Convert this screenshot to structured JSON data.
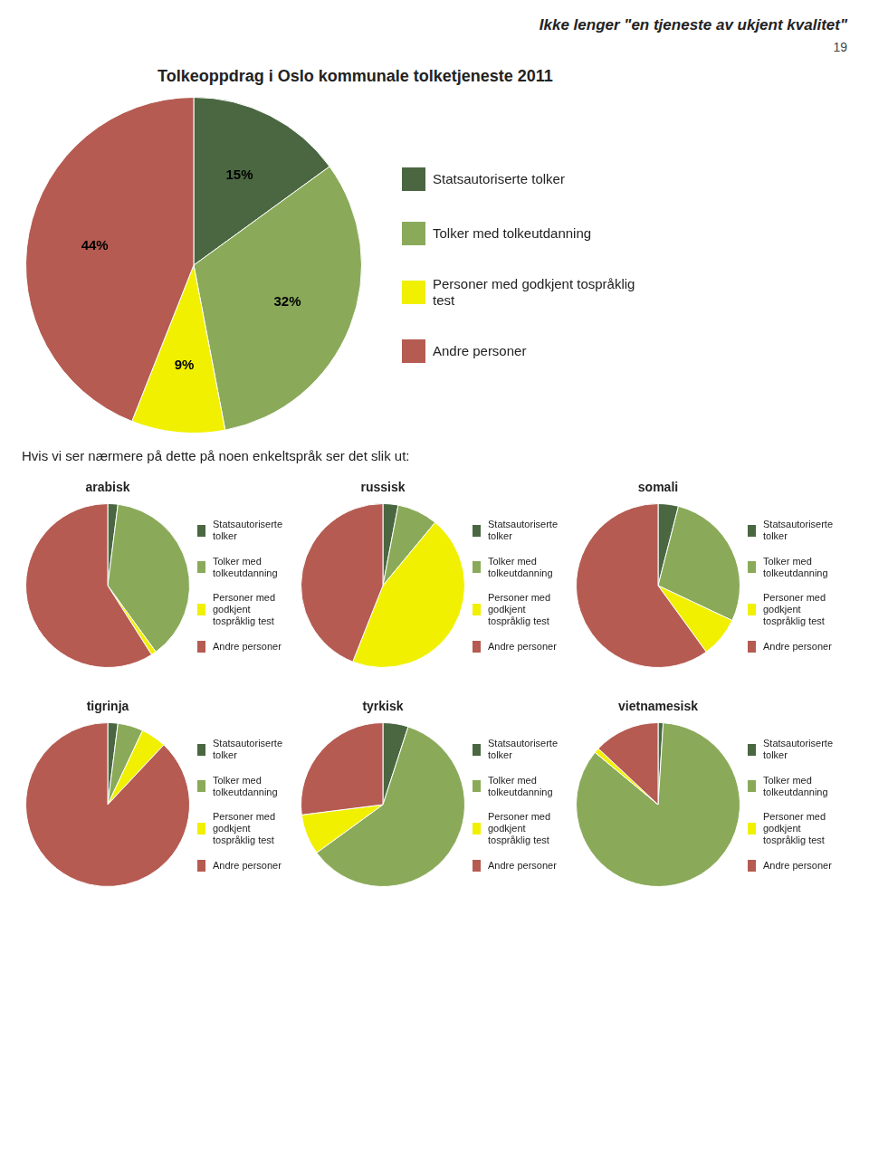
{
  "chart_data": [
    {
      "type": "pie",
      "title": "Tolkeoppdrag i Oslo kommunale tolketjeneste 2011",
      "categories": [
        "Statsautoriserte tolker",
        "Tolker med tolkeutdanning",
        "Personer med godkjent tospråklig\ntest",
        "Andre personer"
      ],
      "values": [
        15,
        32,
        9,
        44
      ],
      "value_labels": [
        "15%",
        "32%",
        "9%",
        "44%"
      ],
      "data_labels": true,
      "colors": [
        "#4a6741",
        "#8aaa5a",
        "#f0f000",
        "#b55b52"
      ],
      "legend": "right",
      "annotations": [
        "Ikke lenger \"en tjeneste av ukjent kvalitet\"",
        "19",
        "Hvis vi ser nærmere på dette på noen enkeltspråk ser det slik ut:"
      ]
    },
    {
      "type": "pie",
      "title": "arabisk",
      "categories": [
        "Statsautoriserte\ntolker",
        "Tolker med\ntolkeutdanning",
        "Personer med\ngodkjent\ntospråklig test",
        "Andre personer"
      ],
      "values": [
        2,
        38,
        1,
        59
      ],
      "colors": [
        "#4a6741",
        "#8aaa5a",
        "#f0f000",
        "#b55b52"
      ],
      "legend": "right"
    },
    {
      "type": "pie",
      "title": "russisk",
      "categories": [
        "Statsautoriserte\ntolker",
        "Tolker med\ntolkeutdanning",
        "Personer med\ngodkjent\ntospråklig test",
        "Andre personer"
      ],
      "values": [
        3,
        8,
        45,
        44
      ],
      "colors": [
        "#4a6741",
        "#8aaa5a",
        "#f0f000",
        "#b55b52"
      ],
      "legend": "right"
    },
    {
      "type": "pie",
      "title": "somali",
      "categories": [
        "Statsautoriserte\ntolker",
        "Tolker med\ntolkeutdanning",
        "Personer med\ngodkjent\ntospråklig test",
        "Andre personer"
      ],
      "values": [
        4,
        28,
        8,
        60
      ],
      "colors": [
        "#4a6741",
        "#8aaa5a",
        "#f0f000",
        "#b55b52"
      ],
      "legend": "right"
    },
    {
      "type": "pie",
      "title": "tigrinja",
      "categories": [
        "Statsautoriserte\ntolker",
        "Tolker med\ntolkeutdanning",
        "Personer med\ngodkjent\ntospråklig test",
        "Andre personer"
      ],
      "values": [
        2,
        5,
        5,
        88
      ],
      "colors": [
        "#4a6741",
        "#8aaa5a",
        "#f0f000",
        "#b55b52"
      ],
      "legend": "right"
    },
    {
      "type": "pie",
      "title": "tyrkisk",
      "categories": [
        "Statsautoriserte\ntolker",
        "Tolker med\ntolkeutdanning",
        "Personer med\ngodkjent\ntospråklig test",
        "Andre personer"
      ],
      "values": [
        5,
        60,
        8,
        27
      ],
      "colors": [
        "#4a6741",
        "#8aaa5a",
        "#f0f000",
        "#b55b52"
      ],
      "legend": "right"
    },
    {
      "type": "pie",
      "title": "vietnamesisk",
      "categories": [
        "Statsautoriserte\ntolker",
        "Tolker med\ntolkeutdanning",
        "Personer med\ngodkjent\ntospråklig test",
        "Andre personer"
      ],
      "values": [
        1,
        85,
        1,
        13
      ],
      "colors": [
        "#4a6741",
        "#8aaa5a",
        "#f0f000",
        "#b55b52"
      ],
      "legend": "right"
    }
  ]
}
